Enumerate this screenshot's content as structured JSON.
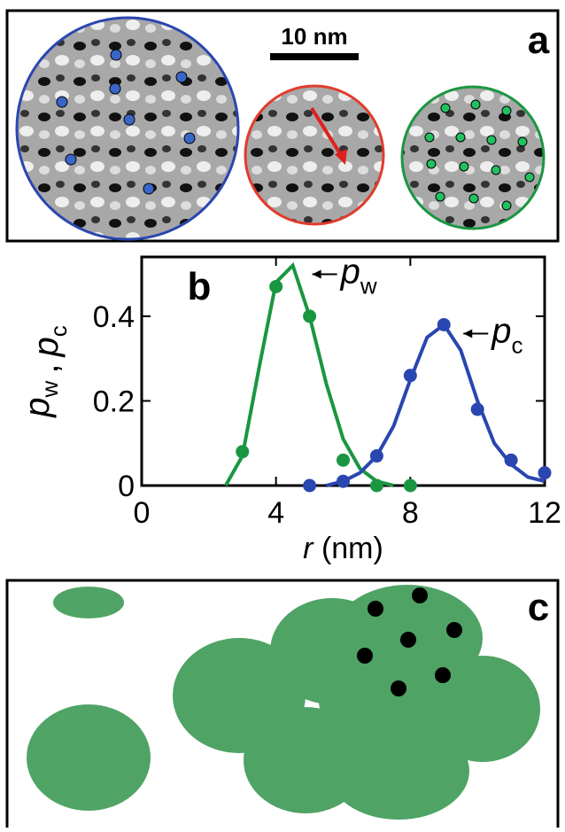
{
  "panels": {
    "a": {
      "label": "a",
      "scale_bar": "10 nm"
    },
    "c": {
      "label": "c"
    }
  },
  "chart_data": {
    "type": "scatter",
    "panel_label": "b",
    "xlabel_var": "r",
    "xlabel_unit": "(nm)",
    "ylabel": [
      {
        "text": "p",
        "sub": "w"
      },
      {
        "text": ","
      },
      {
        "text": "p",
        "sub": "c"
      }
    ],
    "xlim": [
      0,
      12
    ],
    "xticks": [
      0,
      4,
      8,
      12
    ],
    "ylim": [
      0,
      0.54
    ],
    "yticks": [
      0,
      0.2,
      0.4
    ],
    "series": [
      {
        "color": "#1a9641",
        "label": {
          "text": "p",
          "sub": "w"
        },
        "x": [
          3,
          4,
          5,
          6,
          7,
          8
        ],
        "values": [
          0.08,
          0.47,
          0.4,
          0.06,
          0.0,
          0.0
        ],
        "fit_x": [
          2.5,
          3,
          3.5,
          4,
          4.5,
          5,
          5.5,
          6,
          6.5,
          7,
          7.5
        ],
        "fit_y": [
          0,
          0.07,
          0.28,
          0.48,
          0.52,
          0.4,
          0.24,
          0.11,
          0.04,
          0.01,
          0.0
        ]
      },
      {
        "color": "#2a46b0",
        "label": {
          "text": "p",
          "sub": "c"
        },
        "x": [
          5,
          6,
          7,
          8,
          9,
          10,
          11,
          12
        ],
        "values": [
          0.0,
          0.01,
          0.07,
          0.26,
          0.38,
          0.18,
          0.06,
          0.03
        ],
        "fit_x": [
          5.5,
          6,
          6.5,
          7,
          7.5,
          8,
          8.5,
          9,
          9.5,
          10,
          10.5,
          11,
          11.5,
          12
        ],
        "fit_y": [
          0,
          0.01,
          0.03,
          0.07,
          0.14,
          0.25,
          0.35,
          0.38,
          0.32,
          0.2,
          0.1,
          0.05,
          0.02,
          0.01
        ]
      }
    ]
  }
}
